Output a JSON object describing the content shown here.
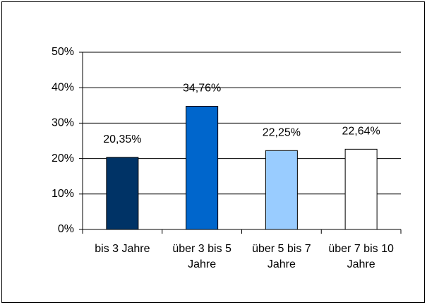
{
  "chart_data": {
    "type": "bar",
    "categories": [
      "bis 3 Jahre",
      "über 3 bis 5 Jahre",
      "über 5 bis 7 Jahre",
      "über 7 bis 10 Jahre"
    ],
    "values": [
      20.35,
      34.76,
      22.25,
      22.64
    ],
    "value_labels": [
      "20,35%",
      "34,76%",
      "22,25%",
      "22,64%"
    ],
    "colors": [
      "#003366",
      "#0066cc",
      "#99ccff",
      "#ffffff"
    ],
    "ylim": [
      0,
      50
    ],
    "yticks": [
      {
        "value": 0,
        "label": "0%"
      },
      {
        "value": 10,
        "label": "10%"
      },
      {
        "value": 20,
        "label": "20%"
      },
      {
        "value": 30,
        "label": "30%"
      },
      {
        "value": 40,
        "label": "40%"
      },
      {
        "value": 50,
        "label": "50%"
      }
    ],
    "grid": true
  }
}
